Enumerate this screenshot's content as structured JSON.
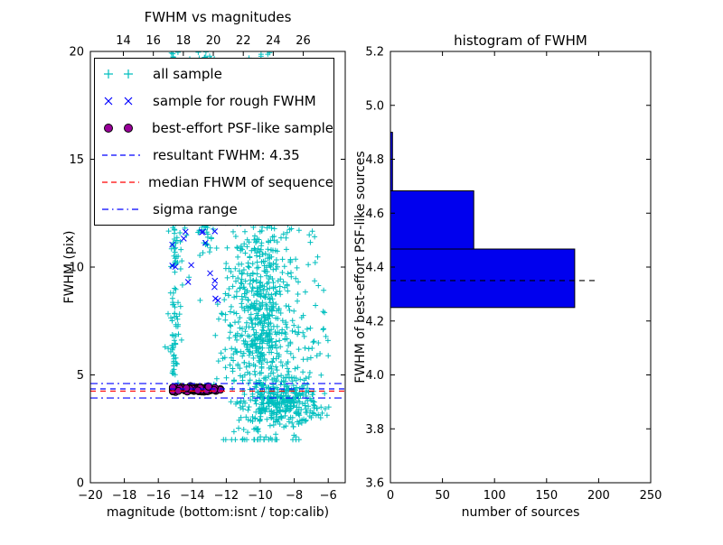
{
  "figure": {
    "background": "#ffffff"
  },
  "chart_data": [
    {
      "type": "scatter",
      "title": "FWHM vs magnitudes",
      "xlabel": "magnitude (bottom:isnt / top:calib)",
      "ylabel": "FWHM (pix)",
      "xlim": [
        -20,
        -5
      ],
      "ylim": [
        0,
        20
      ],
      "xticks": [
        -20,
        -18,
        -16,
        -14,
        -12,
        -10,
        -8,
        -6
      ],
      "yticks": [
        0,
        5,
        10,
        15,
        20
      ],
      "top_axis": {
        "lim": [
          11.8,
          28.8
        ],
        "ticks": [
          14,
          16,
          18,
          20,
          22,
          24,
          26
        ]
      },
      "series": [
        {
          "name": "all sample",
          "marker": "plus",
          "color": "#00bfbf",
          "seed": 11,
          "clusters": [
            {
              "n": 140,
              "x": {
                "dist": "normal",
                "mu": -15.05,
                "sigma": 0.1
              },
              "y": {
                "dist": "uniform",
                "min": 4.3,
                "max": 20
              }
            },
            {
              "n": 60,
              "x": {
                "dist": "normal",
                "mu": -15.0,
                "sigma": 0.3
              },
              "y": {
                "dist": "uniform",
                "min": 6,
                "max": 20
              }
            },
            {
              "n": 150,
              "x": {
                "dist": "normal",
                "mu": -13.25,
                "sigma": 0.22
              },
              "y": {
                "dist": "uniform",
                "min": 10.5,
                "max": 20
              }
            },
            {
              "n": 60,
              "x": {
                "dist": "normal",
                "mu": -13.3,
                "sigma": 0.55
              },
              "y": {
                "dist": "uniform",
                "min": 13,
                "max": 20
              }
            },
            {
              "n": 700,
              "x": {
                "dist": "normal",
                "mu": -9.9,
                "sigma": 1.05
              },
              "y": {
                "dist": "normal",
                "mu": 7.5,
                "sigma": 3.0,
                "clip": [
                  2,
                  20
                ]
              }
            },
            {
              "n": 130,
              "x": {
                "dist": "normal",
                "mu": -10.2,
                "sigma": 0.75
              },
              "y": {
                "dist": "uniform",
                "min": 12,
                "max": 20
              }
            },
            {
              "n": 260,
              "x": {
                "dist": "normal",
                "mu": -8.6,
                "sigma": 1.0
              },
              "y": {
                "dist": "normal",
                "mu": 3.7,
                "sigma": 0.55,
                "clip": [
                  2.2,
                  5.5
                ]
              }
            },
            {
              "n": 90,
              "x": {
                "dist": "uniform",
                "min": -12.8,
                "max": -6.2
              },
              "y": {
                "dist": "uniform",
                "min": 2.5,
                "max": 19
              }
            },
            {
              "n": 40,
              "x": {
                "dist": "uniform",
                "min": -8.2,
                "max": -5.9
              },
              "y": {
                "dist": "uniform",
                "min": 3,
                "max": 8
              }
            }
          ]
        },
        {
          "name": "sample for rough FWHM",
          "marker": "cross",
          "color": "#0000ff",
          "seed": 22,
          "clusters": [
            {
              "n": 18,
              "x": {
                "dist": "normal",
                "mu": -13.8,
                "sigma": 0.75,
                "clip": [
                  -15.3,
                  -12.4
                ]
              },
              "y": {
                "dist": "normal",
                "mu": 11,
                "sigma": 1.5,
                "clip": [
                  8.2,
                  13.8
                ]
              }
            },
            {
              "n": 5,
              "x": {
                "dist": "normal",
                "mu": -13.2,
                "sigma": 0.25
              },
              "y": {
                "dist": "uniform",
                "min": 17.8,
                "max": 20
              }
            },
            {
              "n": 4,
              "x": {
                "dist": "uniform",
                "min": -12.9,
                "max": -12.4
              },
              "y": {
                "dist": "uniform",
                "min": 8.2,
                "max": 9.5
              }
            }
          ]
        },
        {
          "name": "best-effort PSF-like sample",
          "marker": "circle",
          "color": "#990099",
          "edge": "#000000",
          "seed": 33,
          "clusters": [
            {
              "n": 85,
              "x": {
                "dist": "normal",
                "mu": -13.85,
                "sigma": 0.75,
                "clip": [
                  -15.15,
                  -12.35
                ]
              },
              "y": {
                "dist": "normal",
                "mu": 4.33,
                "sigma": 0.07,
                "clip": [
                  4.12,
                  4.55
                ]
              }
            }
          ]
        }
      ],
      "lines": [
        {
          "name": "resultant FWHM: 4.35",
          "y": 4.35,
          "style": "dashed",
          "color": "#0000ff"
        },
        {
          "name": "median FHWM of sequence",
          "y": 4.25,
          "style": "dashed",
          "color": "#ff0000"
        },
        {
          "name": "sigma range",
          "y_values": [
            3.93,
            4.6
          ],
          "style": "dashdot",
          "color": "#0000ff"
        }
      ],
      "resultant_fwhm": 4.35,
      "legend": [
        {
          "label": "all sample",
          "type": "marker",
          "marker": "plus",
          "color": "#00bfbf"
        },
        {
          "label": "sample for rough FWHM",
          "type": "marker",
          "marker": "cross",
          "color": "#0000ff"
        },
        {
          "label": "best-effort PSF-like sample",
          "type": "marker",
          "marker": "circle",
          "color": "#990099"
        },
        {
          "label": "resultant FWHM: 4.35",
          "type": "line",
          "style": "dashed",
          "color": "#0000ff"
        },
        {
          "label": "median FHWM of sequence",
          "type": "line",
          "style": "dashed",
          "color": "#ff0000"
        },
        {
          "label": "sigma range",
          "type": "line",
          "style": "dashdot",
          "color": "#0000ff"
        }
      ]
    },
    {
      "type": "bar",
      "orientation": "horizontal",
      "title": "histogram of FWHM",
      "xlabel": "number of sources",
      "ylabel": "FWHM of best-effort PSF-like sources",
      "xlim": [
        0,
        250
      ],
      "ylim": [
        3.6,
        5.2
      ],
      "xticks": [
        0,
        50,
        100,
        150,
        200,
        250
      ],
      "yticks": [
        3.6,
        3.8,
        4.0,
        4.2,
        4.4,
        4.6,
        4.8,
        5.0,
        5.2
      ],
      "bar_color": "#0000ee",
      "bars": [
        {
          "y0": 4.25,
          "y1": 4.467,
          "count": 177
        },
        {
          "y0": 4.467,
          "y1": 4.683,
          "count": 80
        },
        {
          "y0": 4.683,
          "y1": 4.9,
          "count": 2
        }
      ],
      "dashed_line": {
        "y": 4.35,
        "x0": 0,
        "x1": 200,
        "color": "#000000"
      }
    }
  ]
}
